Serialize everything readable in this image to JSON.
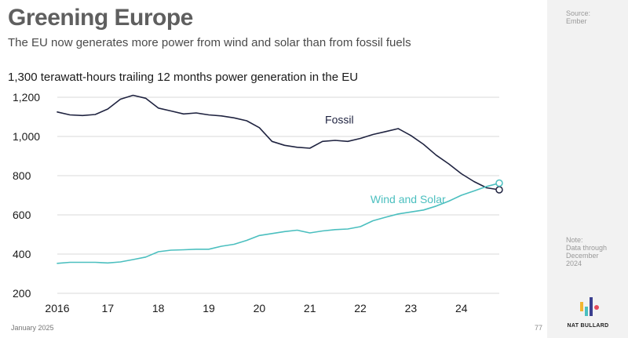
{
  "header": {
    "title": "Greening Europe",
    "subtitle": "The EU now generates more power from wind and solar than from fossil fuels",
    "chart_heading": "1,300 terawatt-hours trailing 12 months power generation in the EU"
  },
  "footer": {
    "date": "January 2025",
    "page_number": "77"
  },
  "sidebar": {
    "source": "Source:\nEmber",
    "note": "Note:\nData through\nDecember\n2024",
    "brand": "NAT BULLARD"
  },
  "colors": {
    "fossil": "#1f2340",
    "wind_solar": "#4bbfbf",
    "grid": "#d9d9d9"
  },
  "chart_data": {
    "type": "line",
    "title": "1,300 terawatt-hours trailing 12 months power generation in the EU",
    "xlabel": "",
    "ylabel": "",
    "xlim": [
      2016,
      2024.75
    ],
    "ylim": [
      200,
      1200
    ],
    "x_ticks": [
      {
        "value": 2016,
        "label": "2016"
      },
      {
        "value": 2017,
        "label": "17"
      },
      {
        "value": 2018,
        "label": "18"
      },
      {
        "value": 2019,
        "label": "19"
      },
      {
        "value": 2020,
        "label": "20"
      },
      {
        "value": 2021,
        "label": "21"
      },
      {
        "value": 2022,
        "label": "22"
      },
      {
        "value": 2023,
        "label": "23"
      },
      {
        "value": 2024,
        "label": "24"
      }
    ],
    "y_ticks": [
      {
        "value": 200,
        "label": "200"
      },
      {
        "value": 400,
        "label": "400"
      },
      {
        "value": 600,
        "label": "600"
      },
      {
        "value": 800,
        "label": "800"
      },
      {
        "value": 1000,
        "label": "1,000"
      },
      {
        "value": 1200,
        "label": "1,200"
      }
    ],
    "grid": true,
    "series": [
      {
        "name": "Fossil",
        "color": "#1f2340",
        "label_at": {
          "x": 2021.3,
          "y": 1067
        },
        "points": [
          [
            2016.0,
            1125
          ],
          [
            2016.25,
            1110
          ],
          [
            2016.5,
            1107
          ],
          [
            2016.75,
            1112
          ],
          [
            2017.0,
            1140
          ],
          [
            2017.25,
            1190
          ],
          [
            2017.5,
            1210
          ],
          [
            2017.75,
            1195
          ],
          [
            2018.0,
            1145
          ],
          [
            2018.25,
            1130
          ],
          [
            2018.5,
            1115
          ],
          [
            2018.75,
            1120
          ],
          [
            2019.0,
            1110
          ],
          [
            2019.25,
            1105
          ],
          [
            2019.5,
            1095
          ],
          [
            2019.75,
            1080
          ],
          [
            2020.0,
            1045
          ],
          [
            2020.25,
            975
          ],
          [
            2020.5,
            955
          ],
          [
            2020.75,
            945
          ],
          [
            2021.0,
            940
          ],
          [
            2021.25,
            975
          ],
          [
            2021.5,
            980
          ],
          [
            2021.75,
            975
          ],
          [
            2022.0,
            990
          ],
          [
            2022.25,
            1010
          ],
          [
            2022.5,
            1025
          ],
          [
            2022.75,
            1040
          ],
          [
            2023.0,
            1005
          ],
          [
            2023.25,
            960
          ],
          [
            2023.5,
            905
          ],
          [
            2023.75,
            860
          ],
          [
            2024.0,
            810
          ],
          [
            2024.25,
            770
          ],
          [
            2024.5,
            738
          ],
          [
            2024.75,
            728
          ]
        ]
      },
      {
        "name": "Wind and Solar",
        "color": "#4bbfbf",
        "label_at": {
          "x": 2022.2,
          "y": 660
        },
        "points": [
          [
            2016.0,
            353
          ],
          [
            2016.25,
            358
          ],
          [
            2016.5,
            358
          ],
          [
            2016.75,
            358
          ],
          [
            2017.0,
            355
          ],
          [
            2017.25,
            360
          ],
          [
            2017.5,
            372
          ],
          [
            2017.75,
            385
          ],
          [
            2018.0,
            412
          ],
          [
            2018.25,
            420
          ],
          [
            2018.5,
            422
          ],
          [
            2018.75,
            425
          ],
          [
            2019.0,
            425
          ],
          [
            2019.25,
            440
          ],
          [
            2019.5,
            450
          ],
          [
            2019.75,
            470
          ],
          [
            2020.0,
            495
          ],
          [
            2020.25,
            505
          ],
          [
            2020.5,
            515
          ],
          [
            2020.75,
            522
          ],
          [
            2021.0,
            508
          ],
          [
            2021.25,
            518
          ],
          [
            2021.5,
            525
          ],
          [
            2021.75,
            528
          ],
          [
            2022.0,
            540
          ],
          [
            2022.25,
            570
          ],
          [
            2022.5,
            588
          ],
          [
            2022.75,
            605
          ],
          [
            2023.0,
            615
          ],
          [
            2023.25,
            625
          ],
          [
            2023.5,
            645
          ],
          [
            2023.75,
            670
          ],
          [
            2024.0,
            700
          ],
          [
            2024.25,
            722
          ],
          [
            2024.5,
            745
          ],
          [
            2024.75,
            762
          ]
        ]
      }
    ]
  }
}
